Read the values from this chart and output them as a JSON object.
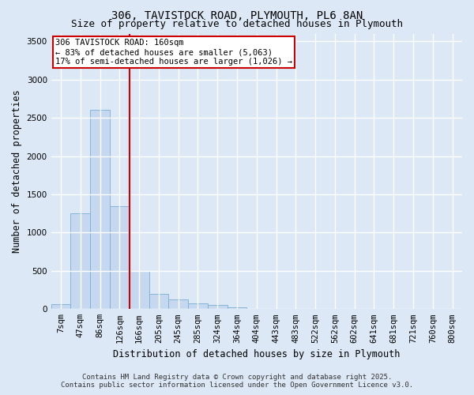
{
  "title_line1": "306, TAVISTOCK ROAD, PLYMOUTH, PL6 8AN",
  "title_line2": "Size of property relative to detached houses in Plymouth",
  "xlabel": "Distribution of detached houses by size in Plymouth",
  "ylabel": "Number of detached properties",
  "categories": [
    "7sqm",
    "47sqm",
    "86sqm",
    "126sqm",
    "166sqm",
    "205sqm",
    "245sqm",
    "285sqm",
    "324sqm",
    "364sqm",
    "404sqm",
    "443sqm",
    "483sqm",
    "522sqm",
    "562sqm",
    "602sqm",
    "641sqm",
    "681sqm",
    "721sqm",
    "760sqm",
    "800sqm"
  ],
  "values": [
    60,
    1250,
    2600,
    1350,
    500,
    200,
    130,
    80,
    55,
    20,
    0,
    0,
    0,
    0,
    0,
    0,
    0,
    0,
    0,
    0,
    0
  ],
  "bar_color": "#c5d8ef",
  "bar_edge_color": "#7aaed4",
  "vline_color": "#cc0000",
  "vline_pos": 3.5,
  "annotation_text": "306 TAVISTOCK ROAD: 160sqm\n← 83% of detached houses are smaller (5,063)\n17% of semi-detached houses are larger (1,026) →",
  "annotation_box_color": "#ffffff",
  "annotation_box_edge_color": "#cc0000",
  "ylim": [
    0,
    3600
  ],
  "yticks": [
    0,
    500,
    1000,
    1500,
    2000,
    2500,
    3000,
    3500
  ],
  "background_color": "#dce8f5",
  "plot_background_color": "#dce8f5",
  "grid_color": "#ffffff",
  "footer_line1": "Contains HM Land Registry data © Crown copyright and database right 2025.",
  "footer_line2": "Contains public sector information licensed under the Open Government Licence v3.0.",
  "title_fontsize": 10,
  "subtitle_fontsize": 9,
  "axis_label_fontsize": 8.5,
  "tick_fontsize": 7.5,
  "annotation_fontsize": 7.5,
  "footer_fontsize": 6.5
}
